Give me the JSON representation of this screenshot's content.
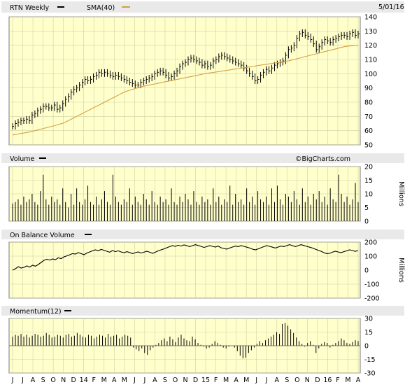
{
  "chart_data": {
    "type": "line",
    "date_label": "5/01/16",
    "watermark": "©BigCharts.com",
    "x_tick_labels": [
      "J",
      "J",
      "A",
      "S",
      "O",
      "N",
      "D",
      "14",
      "F",
      "M",
      "A",
      "M",
      "J",
      "J",
      "A",
      "S",
      "O",
      "N",
      "D",
      "15",
      "F",
      "M",
      "A",
      "M",
      "J",
      "J",
      "A",
      "S",
      "O",
      "N",
      "D",
      "16",
      "F",
      "M",
      "A"
    ],
    "panels": [
      {
        "name": "price",
        "legend": [
          {
            "label": "RTN Weekly",
            "color": "#000000"
          },
          {
            "label": "SMA(40)",
            "color": "#d4a040"
          }
        ],
        "ylim": [
          50,
          140
        ],
        "y_ticks": [
          50,
          60,
          70,
          80,
          90,
          100,
          110,
          120,
          130,
          140
        ],
        "series": [
          {
            "name": "RTN Weekly",
            "kind": "ohlc_close",
            "values": [
              63,
              65,
              66,
              67,
              67,
              68,
              67,
              71,
              72,
              74,
              75,
              77,
              77,
              76,
              76,
              78,
              75,
              76,
              79,
              82,
              84,
              87,
              89,
              90,
              92,
              94,
              96,
              95,
              96,
              98,
              99,
              101,
              100,
              101,
              100,
              99,
              98,
              99,
              98,
              97,
              96,
              95,
              94,
              93,
              92,
              92,
              94,
              95,
              96,
              97,
              98,
              100,
              101,
              102,
              101,
              99,
              97,
              98,
              100,
              102,
              105,
              107,
              108,
              110,
              111,
              110,
              109,
              108,
              106,
              107,
              105,
              106,
              109,
              110,
              112,
              113,
              112,
              111,
              110,
              109,
              108,
              107,
              106,
              104,
              102,
              100,
              98,
              95,
              96,
              99,
              101,
              103,
              102,
              104,
              106,
              107,
              108,
              109,
              113,
              117,
              118,
              120,
              125,
              128,
              129,
              127,
              126,
              124,
              121,
              117,
              119,
              122,
              124,
              123,
              122,
              124,
              125,
              126,
              127,
              127,
              126,
              128,
              129,
              127,
              128
            ]
          },
          {
            "name": "SMA(40)",
            "kind": "line",
            "values": [
              57,
              57.3,
              57.6,
              58,
              58.3,
              58.7,
              59,
              59.5,
              60,
              60.5,
              61,
              61.5,
              62,
              62.5,
              63,
              63.5,
              64,
              64.6,
              65.2,
              66,
              67,
              68,
              69,
              70,
              71,
              72,
              73,
              74,
              75,
              76,
              77,
              78,
              79,
              80,
              81,
              82,
              83,
              84,
              85,
              86,
              87,
              87.7,
              88.4,
              89,
              89.6,
              90.2,
              90.7,
              91.2,
              91.6,
              92,
              92.4,
              92.8,
              93.2,
              93.6,
              94,
              94.4,
              94.8,
              95.2,
              95.6,
              96,
              96.4,
              96.8,
              97.2,
              97.6,
              98,
              98.4,
              98.8,
              99.2,
              99.6,
              100,
              100.3,
              100.6,
              100.9,
              101.2,
              101.5,
              101.8,
              102.1,
              102.4,
              102.7,
              103,
              103.3,
              103.6,
              103.9,
              104.2,
              104.5,
              104.8,
              105.1,
              105.4,
              105.7,
              106,
              106.3,
              106.6,
              106.9,
              107.2,
              107.5,
              107.8,
              108.1,
              108.4,
              108.7,
              109,
              109.5,
              110,
              110.5,
              111,
              111.5,
              112,
              112.5,
              113,
              113.5,
              114,
              114.5,
              115,
              115.5,
              116,
              116.5,
              117,
              117.5,
              118,
              118.5,
              119,
              119.3,
              119.5,
              119.7,
              119.9,
              120.1
            ]
          }
        ]
      },
      {
        "name": "volume",
        "legend": [
          {
            "label": "Volume",
            "color": "#000000"
          }
        ],
        "y_axis_label": "Millions",
        "ylim": [
          0,
          20
        ],
        "y_ticks": [
          0,
          5,
          10,
          15,
          20
        ],
        "series": [
          {
            "name": "Volume",
            "kind": "bar",
            "values": [
              6.5,
              7,
              8,
              6,
              9,
              7,
              8,
              10,
              7,
              6,
              11,
              17,
              8,
              6,
              9,
              7,
              8,
              6,
              12,
              7,
              5,
              10,
              6,
              12,
              7,
              6,
              8,
              13,
              7,
              6,
              9,
              6,
              8,
              11,
              7,
              6,
              17,
              9,
              7,
              6,
              8,
              7,
              12,
              6,
              9,
              7,
              6,
              10,
              8,
              6,
              11,
              7,
              6,
              9,
              7,
              8,
              6,
              12,
              7,
              6,
              9,
              7,
              10,
              8,
              6,
              11,
              7,
              6,
              9,
              7,
              8,
              6,
              12,
              7,
              9,
              6,
              8,
              7,
              13,
              6,
              10,
              7,
              8,
              6,
              12,
              7,
              9,
              6,
              11,
              8,
              7,
              9,
              6,
              12,
              7,
              13,
              8,
              6,
              10,
              9,
              7,
              11,
              8,
              6,
              12,
              7,
              9,
              6,
              10,
              8,
              11,
              7,
              9,
              6,
              12,
              8,
              7,
              17,
              10,
              7,
              9,
              6,
              8,
              14,
              7
            ]
          }
        ]
      },
      {
        "name": "on_balance_volume",
        "legend": [
          {
            "label": "On Balance Volume",
            "color": "#000000"
          }
        ],
        "y_axis_label": "Millions",
        "ylim": [
          -200,
          200
        ],
        "y_ticks": [
          -200,
          -100,
          0,
          100,
          200
        ],
        "series": [
          {
            "name": "On Balance Volume",
            "kind": "line",
            "values": [
              0,
              10,
              25,
              15,
              20,
              30,
              22,
              35,
              28,
              40,
              55,
              70,
              78,
              72,
              80,
              74,
              88,
              82,
              95,
              102,
              110,
              118,
              115,
              125,
              118,
              110,
              122,
              130,
              138,
              145,
              138,
              148,
              142,
              135,
              128,
              140,
              132,
              138,
              130,
              124,
              132,
              126,
              118,
              125,
              130,
              122,
              128,
              135,
              128,
              120,
              128,
              138,
              145,
              152,
              160,
              168,
              175,
              170,
              178,
              172,
              180,
              175,
              168,
              175,
              182,
              176,
              170,
              162,
              168,
              175,
              170,
              165,
              172,
              160,
              155,
              150,
              158,
              165,
              172,
              168,
              175,
              170,
              164,
              158,
              150,
              145,
              152,
              160,
              168,
              175,
              170,
              164,
              158,
              165,
              172,
              168,
              175,
              182,
              175,
              168,
              175,
              182,
              176,
              170,
              164,
              158,
              150,
              142,
              135,
              125,
              118,
              120,
              128,
              135,
              130,
              125,
              132,
              138,
              145,
              140,
              134,
              140
            ]
          }
        ]
      },
      {
        "name": "momentum",
        "legend": [
          {
            "label": "Momentum(12)",
            "color": "#000000"
          }
        ],
        "ylim": [
          -30,
          30
        ],
        "y_ticks": [
          -30,
          -15,
          0,
          15,
          30
        ],
        "series": [
          {
            "name": "Momentum(12)",
            "kind": "bar",
            "values": [
              10,
              12,
              11,
              13,
              10,
              12,
              9,
              11,
              13,
              12,
              10,
              11,
              14,
              12,
              9,
              10,
              12,
              11,
              9,
              12,
              13,
              10,
              11,
              14,
              12,
              10,
              9,
              12,
              11,
              8,
              10,
              12,
              11,
              9,
              13,
              10,
              11,
              12,
              8,
              10,
              12,
              11,
              9,
              -2,
              -4,
              -6,
              -3,
              -8,
              -10,
              -5,
              -2,
              1,
              3,
              6,
              8,
              5,
              10,
              7,
              4,
              9,
              12,
              8,
              6,
              5,
              10,
              7,
              3,
              1,
              -1,
              -3,
              -2,
              2,
              5,
              3,
              1,
              -2,
              -3,
              -1,
              0,
              -2,
              -6,
              -11,
              -14,
              -13,
              -8,
              -5,
              -2,
              2,
              5,
              3,
              6,
              8,
              10,
              12,
              15,
              13,
              24,
              25,
              22,
              18,
              14,
              9,
              5,
              2,
              -1,
              3,
              5,
              1,
              -8,
              -3,
              2,
              4,
              3,
              -2,
              1,
              3,
              5,
              8,
              6,
              3,
              2,
              4,
              6,
              5
            ]
          }
        ]
      }
    ]
  }
}
